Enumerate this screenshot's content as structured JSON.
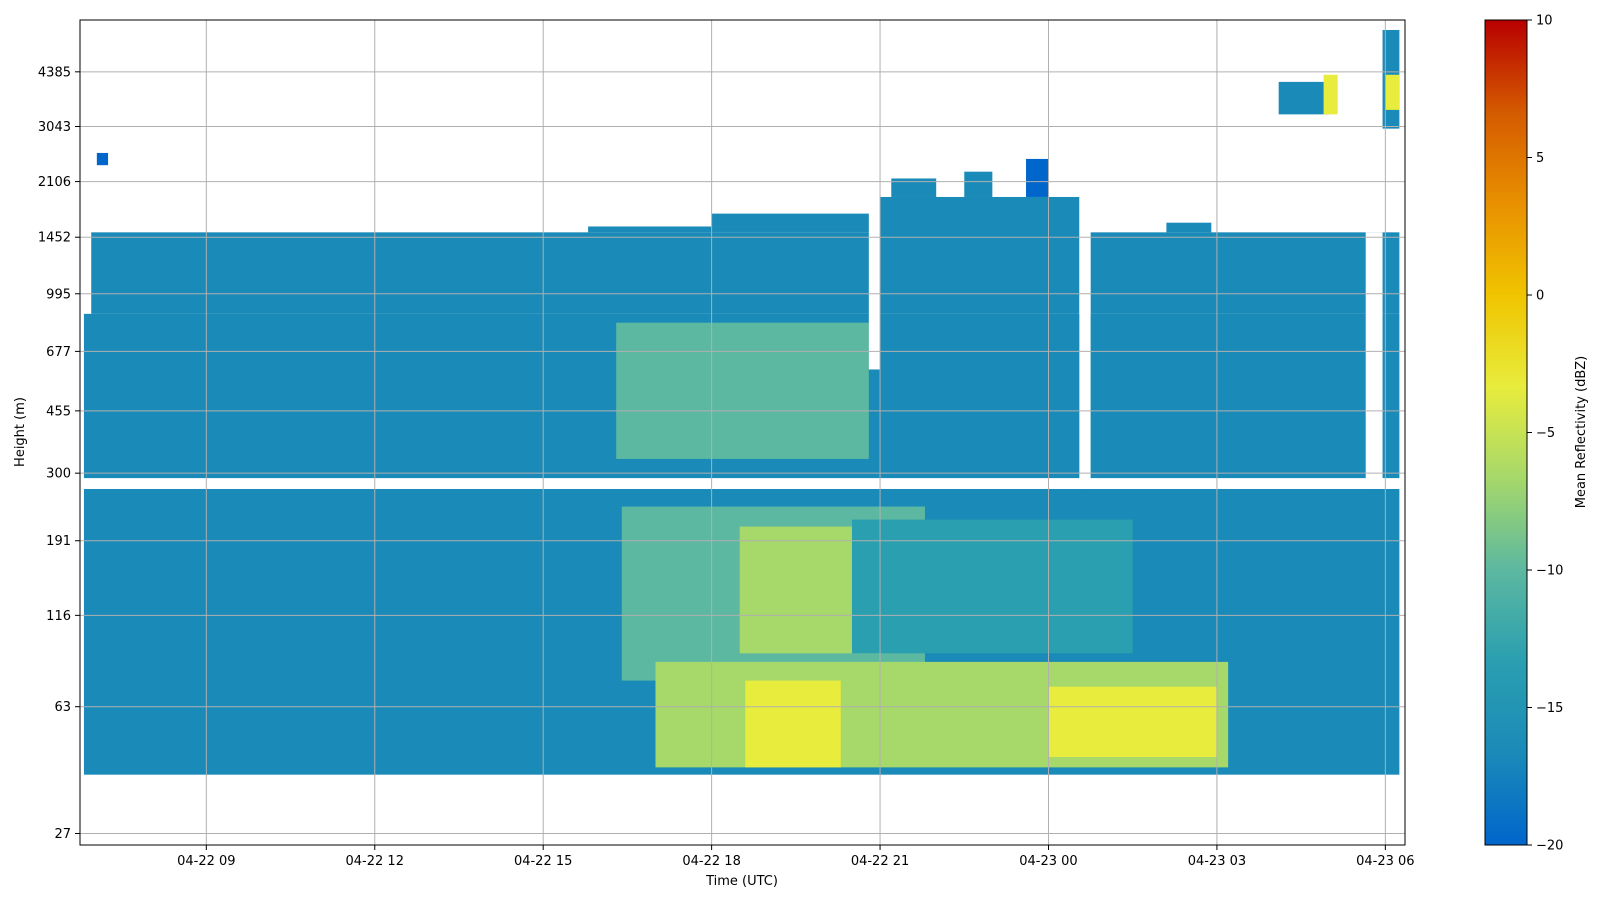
{
  "chart_data": {
    "type": "heatmap",
    "title": "",
    "xlabel": "Time (UTC)",
    "ylabel": "Height (m)",
    "x_tick_labels": [
      "04-22 09",
      "04-22 12",
      "04-22 15",
      "04-22 18",
      "04-22 21",
      "04-23 00",
      "04-23 03",
      "04-23 06"
    ],
    "x_tick_hours": [
      9,
      12,
      15,
      18,
      21,
      24,
      27,
      30
    ],
    "xlim_hours": [
      6.75,
      30.35
    ],
    "y_tick_labels": [
      "27",
      "63",
      "116",
      "191",
      "300",
      "455",
      "677",
      "995",
      "1452",
      "2106",
      "3043",
      "4385"
    ],
    "y_scale": "log",
    "ylim": [
      25,
      6200
    ],
    "grid": true,
    "colorbar": {
      "label": "Mean Reflectivity (dBZ)",
      "tick_labels": [
        "10",
        "5",
        "0",
        "−5",
        "−10",
        "−15",
        "−20"
      ],
      "tick_values": [
        10,
        5,
        0,
        -5,
        -10,
        -15,
        -20
      ],
      "range": [
        -20,
        10
      ],
      "colors": [
        "#0066cc",
        "#1a8ab8",
        "#2a9fb0",
        "#5cb8a0",
        "#a6d86a",
        "#e8ec3c",
        "#f0c400",
        "#e89000",
        "#d45a00",
        "#b80000"
      ]
    },
    "regions": [
      {
        "t_start": 6.82,
        "t_end": 30.25,
        "h_bottom": 40,
        "h_top": 270,
        "value": -15.5
      },
      {
        "t_start": 6.82,
        "t_end": 30.25,
        "h_bottom": 290,
        "h_top": 870,
        "value": -16
      },
      {
        "t_start": 6.95,
        "t_end": 21.0,
        "h_bottom": 870,
        "h_top": 1500,
        "value": -16.5
      },
      {
        "t_start": 15.8,
        "t_end": 21.0,
        "h_bottom": 1500,
        "h_top": 1560,
        "value": -17
      },
      {
        "t_start": 18.0,
        "t_end": 21.0,
        "h_bottom": 1560,
        "h_top": 1700,
        "value": -17
      },
      {
        "t_start": 21.0,
        "t_end": 24.55,
        "h_bottom": 870,
        "h_top": 1900,
        "value": -16.5
      },
      {
        "t_start": 21.2,
        "t_end": 22.0,
        "h_bottom": 1900,
        "h_top": 2150,
        "value": -17
      },
      {
        "t_start": 22.5,
        "t_end": 23.0,
        "h_bottom": 1900,
        "h_top": 2250,
        "value": -17
      },
      {
        "t_start": 23.6,
        "t_end": 24.0,
        "h_bottom": 1900,
        "h_top": 2450,
        "value": -17.5
      },
      {
        "t_start": 24.75,
        "t_end": 30.25,
        "h_bottom": 870,
        "h_top": 1500,
        "value": -16.5
      },
      {
        "t_start": 26.1,
        "t_end": 26.9,
        "h_bottom": 1500,
        "h_top": 1600,
        "value": -17
      },
      {
        "t_start": 28.1,
        "t_end": 29.0,
        "h_bottom": 3300,
        "h_top": 4100,
        "value": -15.5
      },
      {
        "t_start": 29.95,
        "t_end": 30.25,
        "h_bottom": 3000,
        "h_top": 5800,
        "value": -15
      },
      {
        "t_start": 7.05,
        "t_end": 7.25,
        "h_bottom": 2350,
        "h_top": 2550,
        "value": -19
      },
      {
        "t_start": 16.3,
        "t_end": 20.8,
        "h_bottom": 330,
        "h_top": 820,
        "value": -11
      },
      {
        "t_start": 17.4,
        "t_end": 20.3,
        "h_bottom": 370,
        "h_top": 620,
        "value": -9
      },
      {
        "t_start": 16.4,
        "t_end": 21.8,
        "h_bottom": 75,
        "h_top": 240,
        "value": -10
      },
      {
        "t_start": 18.5,
        "t_end": 21.0,
        "h_bottom": 90,
        "h_top": 210,
        "value": -8
      },
      {
        "t_start": 20.5,
        "t_end": 25.5,
        "h_bottom": 90,
        "h_top": 220,
        "value": -11.5
      },
      {
        "t_start": 17.0,
        "t_end": 27.2,
        "h_bottom": 42,
        "h_top": 85,
        "value": -6
      },
      {
        "t_start": 18.6,
        "t_end": 20.3,
        "h_bottom": 42,
        "h_top": 75,
        "value": -3.5
      },
      {
        "t_start": 24.0,
        "t_end": 27.0,
        "h_bottom": 45,
        "h_top": 72,
        "value": -4
      },
      {
        "t_start": 28.9,
        "t_end": 29.15,
        "h_bottom": 3300,
        "h_top": 4300,
        "value": -4
      },
      {
        "t_start": 30.0,
        "t_end": 30.25,
        "h_bottom": 3400,
        "h_top": 4300,
        "value": -5
      }
    ],
    "gaps": [
      {
        "t_start": 20.8,
        "t_end": 21.0,
        "h_bottom": 600,
        "h_top": 1800
      },
      {
        "t_start": 24.55,
        "t_end": 24.75,
        "h_bottom": 270,
        "h_top": 1900
      },
      {
        "t_start": 29.65,
        "t_end": 29.95,
        "h_bottom": 270,
        "h_top": 1500
      },
      {
        "t_start": 6.75,
        "t_end": 30.35,
        "h_bottom": 270,
        "h_top": 290
      }
    ]
  }
}
